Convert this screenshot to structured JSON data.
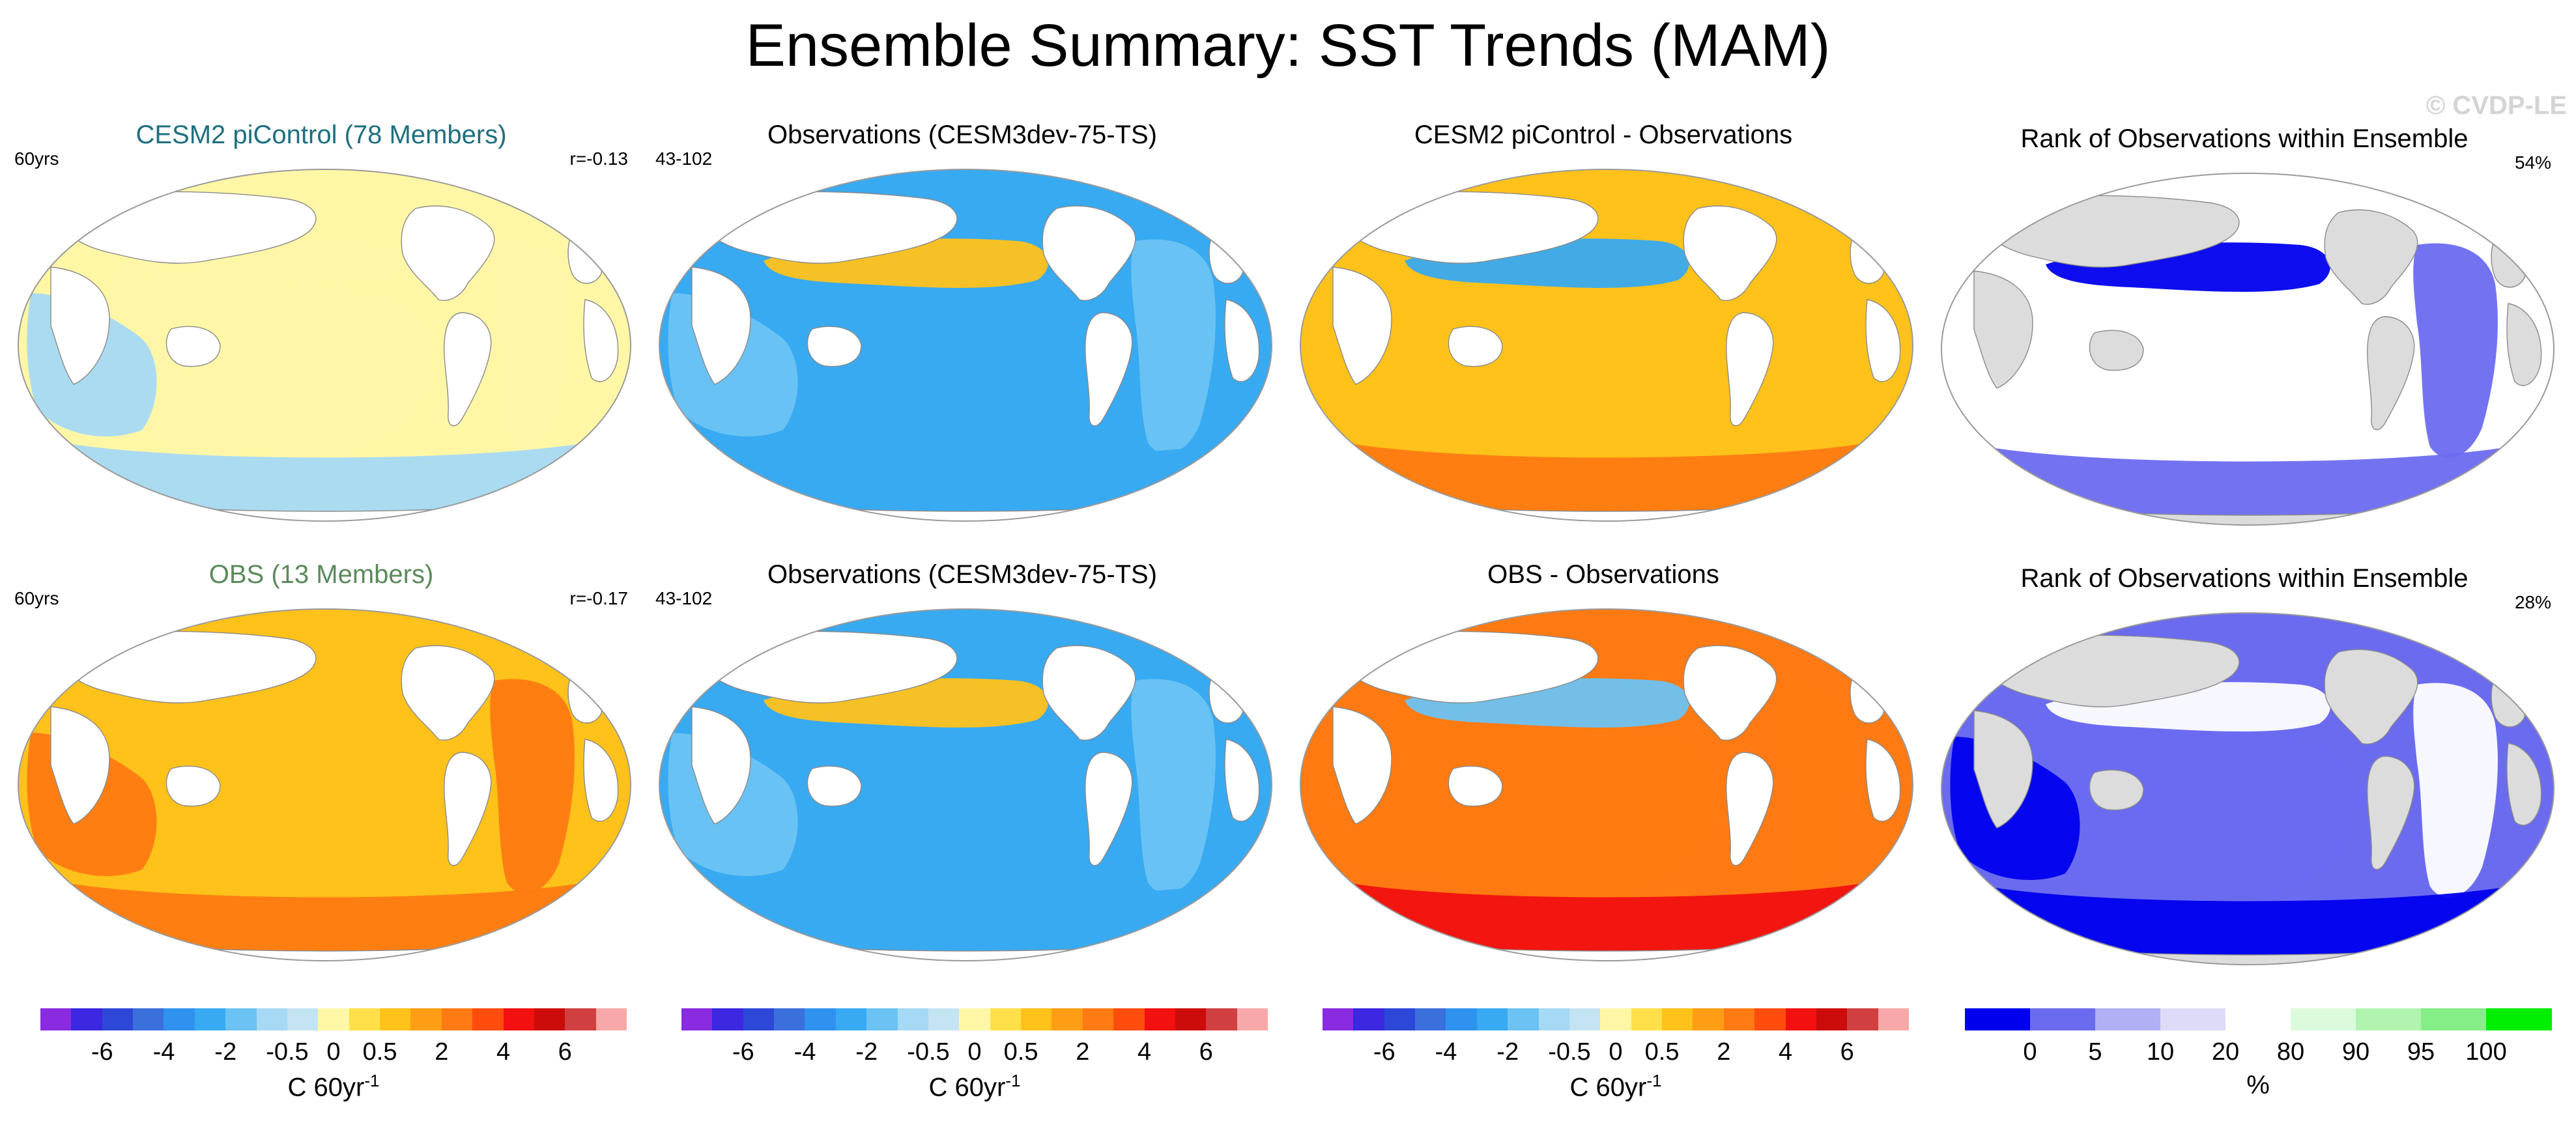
{
  "figure": {
    "title": "Ensemble Summary: SST Trends (MAM)",
    "watermark": "© CVDP-LE"
  },
  "colors": {
    "ocean": "#ffffff",
    "land": "#ffffff",
    "missing_rank": "#dcdcdc",
    "title_model": "#1f6f7f",
    "title_obs": "#5b8a5b"
  },
  "chart_data": [
    {
      "type": "heatmap",
      "panel": "row1-col1",
      "title": "CESM2 piControl (78 Members)",
      "left_label": "60yrs",
      "right_label": "r=-0.13",
      "region_values": {
        "pacific": 0,
        "atlantic": 0,
        "indian": -0.5,
        "southern": -0.5,
        "north_pacific": 0
      },
      "colorbar": "trend"
    },
    {
      "type": "heatmap",
      "panel": "row1-col2",
      "title": "Observations (CESM3dev-75-TS)",
      "left_label": "43-102",
      "right_label": "",
      "region_values": {
        "pacific": -2,
        "atlantic": -1,
        "indian": -1,
        "southern": -2,
        "north_pacific": 0.5
      },
      "colorbar": "trend"
    },
    {
      "type": "heatmap",
      "panel": "row1-col3",
      "title": "CESM2 piControl - Observations",
      "left_label": "",
      "right_label": "",
      "region_values": {
        "pacific": 0.5,
        "atlantic": 0.5,
        "indian": 0.5,
        "southern": 2,
        "north_pacific": -2
      },
      "colorbar": "trend"
    },
    {
      "type": "heatmap",
      "panel": "row1-col4",
      "title": "Rank of Observations within Ensemble",
      "left_label": "",
      "right_label": "54%",
      "region_values": {
        "pacific": 50,
        "atlantic": 5,
        "indian": 50,
        "southern": 5,
        "north_pacific": 0
      },
      "colorbar": "rank"
    },
    {
      "type": "heatmap",
      "panel": "row2-col1",
      "title": "OBS (13 Members)",
      "left_label": "60yrs",
      "right_label": "r=-0.17",
      "region_values": {
        "pacific": 0.5,
        "atlantic": 2,
        "indian": 2,
        "southern": 2,
        "north_pacific": 0.5
      },
      "colorbar": "trend"
    },
    {
      "type": "heatmap",
      "panel": "row2-col2",
      "title": "Observations (CESM3dev-75-TS)",
      "left_label": "43-102",
      "right_label": "",
      "region_values": {
        "pacific": -2,
        "atlantic": -1,
        "indian": -1,
        "southern": -2,
        "north_pacific": 0.5
      },
      "colorbar": "trend"
    },
    {
      "type": "heatmap",
      "panel": "row2-col3",
      "title": "OBS - Observations",
      "left_label": "",
      "right_label": "",
      "region_values": {
        "pacific": 2,
        "atlantic": 2,
        "indian": 2,
        "southern": 4,
        "north_pacific": -1
      },
      "colorbar": "trend"
    },
    {
      "type": "heatmap",
      "panel": "row2-col4",
      "title": "Rank of Observations within Ensemble",
      "left_label": "",
      "right_label": "28%",
      "region_values": {
        "pacific": 5,
        "atlantic": 50,
        "indian": 0,
        "southern": 0,
        "north_pacific": 50
      },
      "colorbar": "rank"
    }
  ],
  "colorbars": {
    "trend": {
      "colors": [
        "#8a2be2",
        "#3b28e0",
        "#2d48d8",
        "#3b6fdc",
        "#2f92ef",
        "#38aaf1",
        "#6cc3f3",
        "#a6d9f3",
        "#c4e3f3",
        "#fff7a6",
        "#ffe04a",
        "#ffc21a",
        "#ff9e14",
        "#ff7a12",
        "#ff4d0e",
        "#f21010",
        "#cc0b0b",
        "#d04040",
        "#f7a8a8"
      ],
      "ticks": [
        "-6",
        "-4",
        "-2",
        "-0.5",
        "0",
        "0.5",
        "2",
        "4",
        "6"
      ],
      "unit": "C 60yr",
      "unit_sup": "-1"
    },
    "rank": {
      "colors": [
        "#0000ee",
        "#6b6bf0",
        "#b0b0f4",
        "#dcdcf8",
        "#ffffff",
        "#dcfadc",
        "#b0f4b0",
        "#86ee86",
        "#00ee00"
      ],
      "ticks": [
        "0",
        "5",
        "10",
        "20",
        "80",
        "90",
        "95",
        "100"
      ],
      "unit": "%"
    }
  }
}
